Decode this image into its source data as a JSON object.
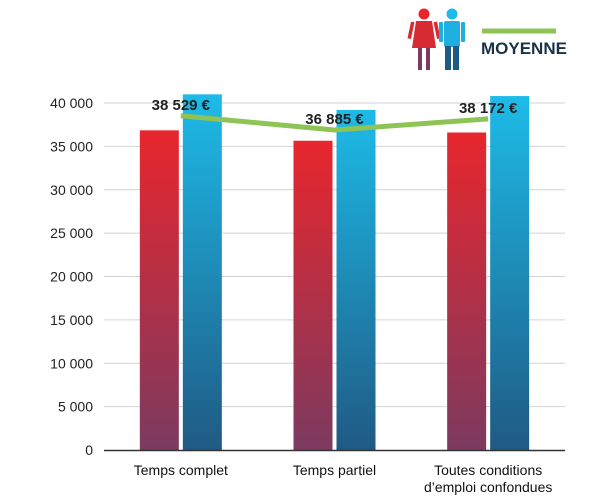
{
  "chart_data": {
    "type": "bar",
    "categories": [
      [
        "Temps complet"
      ],
      [
        "Temps partiel"
      ],
      [
        "Toutes conditions",
        "d’emploi confondues"
      ]
    ],
    "series": [
      {
        "icon": "woman-icon",
        "values": [
          36850,
          35650,
          36600
        ]
      },
      {
        "icon": "man-icon",
        "values": [
          41000,
          39200,
          40800
        ]
      }
    ],
    "average": {
      "name": "MOYENNE",
      "values": [
        38529,
        36885,
        38172
      ],
      "labels": [
        "38 529 €",
        "36 885 €",
        "38 172 €"
      ]
    },
    "ylim": [
      0,
      40000
    ],
    "yticks": [
      0,
      5000,
      10000,
      15000,
      20000,
      25000,
      30000,
      35000,
      40000
    ],
    "ytick_labels": [
      "0",
      "5 000",
      "10 000",
      "15 000",
      "20 000",
      "25 000",
      "30 000",
      "35 000",
      "40 000"
    ],
    "grid": true,
    "legend": "top-right",
    "colors": {
      "women_top": "#e8262d",
      "women_bottom": "#7c3a60",
      "men_top": "#1ebbe8",
      "men_bottom": "#1f5a84",
      "average_line": "#8dc455",
      "grid": "#d2d2d2",
      "axis": "#333333"
    }
  }
}
